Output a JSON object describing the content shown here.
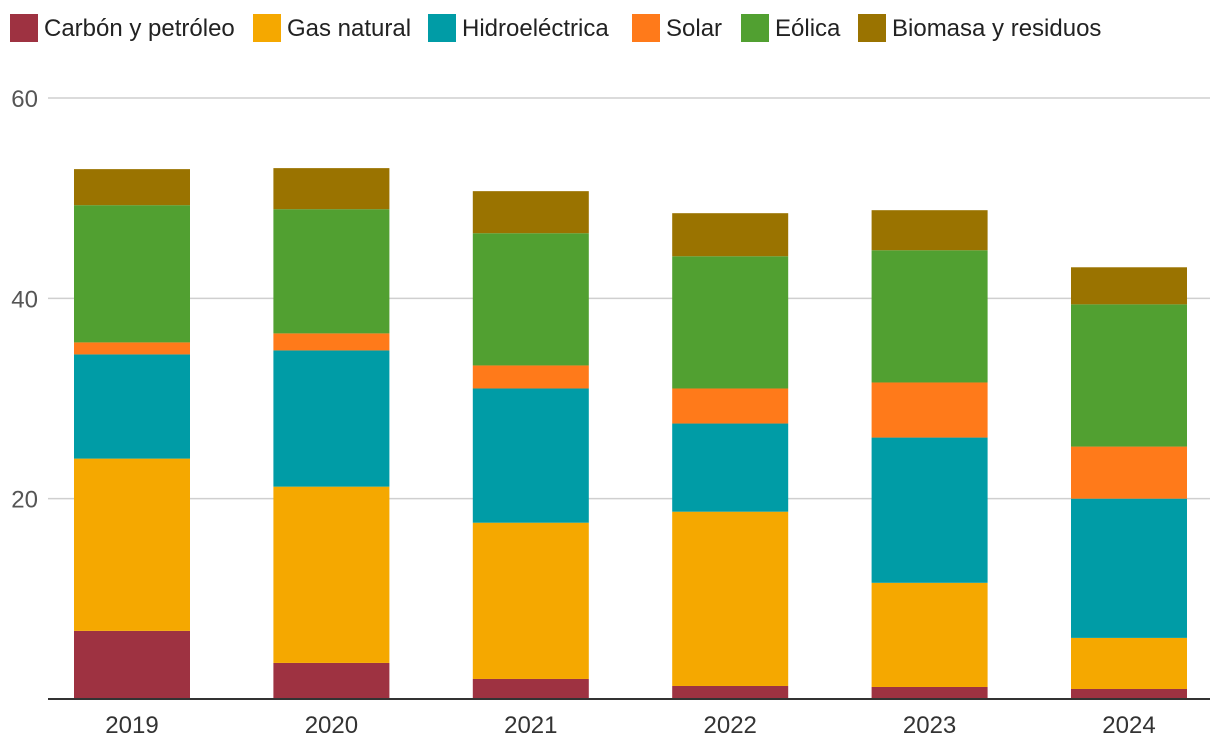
{
  "chart_data": {
    "type": "bar",
    "stacked": true,
    "title": "",
    "xlabel": "",
    "ylabel": "",
    "categories": [
      "2019",
      "2020",
      "2021",
      "2022",
      "2023",
      "2024"
    ],
    "ylim": [
      0,
      60
    ],
    "yticks": [
      20,
      40,
      60
    ],
    "grid": true,
    "legend_position": "top",
    "series": [
      {
        "name": "Carbón y petróleo",
        "color": "#9e3241",
        "values": [
          6.8,
          3.6,
          2.0,
          1.3,
          1.2,
          1.0
        ]
      },
      {
        "name": "Gas natural",
        "color": "#f5a800",
        "values": [
          17.2,
          17.6,
          15.6,
          17.4,
          10.4,
          5.1
        ]
      },
      {
        "name": "Hidroeléctrica",
        "color": "#009ca6",
        "values": [
          10.4,
          13.6,
          13.4,
          8.8,
          14.5,
          13.9
        ]
      },
      {
        "name": "Solar",
        "color": "#ff7a1a",
        "values": [
          1.2,
          1.7,
          2.3,
          3.5,
          5.5,
          5.2
        ]
      },
      {
        "name": "Eólica",
        "color": "#51a031",
        "values": [
          13.7,
          12.4,
          13.2,
          13.2,
          13.2,
          14.2
        ]
      },
      {
        "name": "Biomasa y residuos",
        "color": "#9a7300",
        "values": [
          3.6,
          4.1,
          4.2,
          4.3,
          4.0,
          3.7
        ]
      }
    ]
  }
}
